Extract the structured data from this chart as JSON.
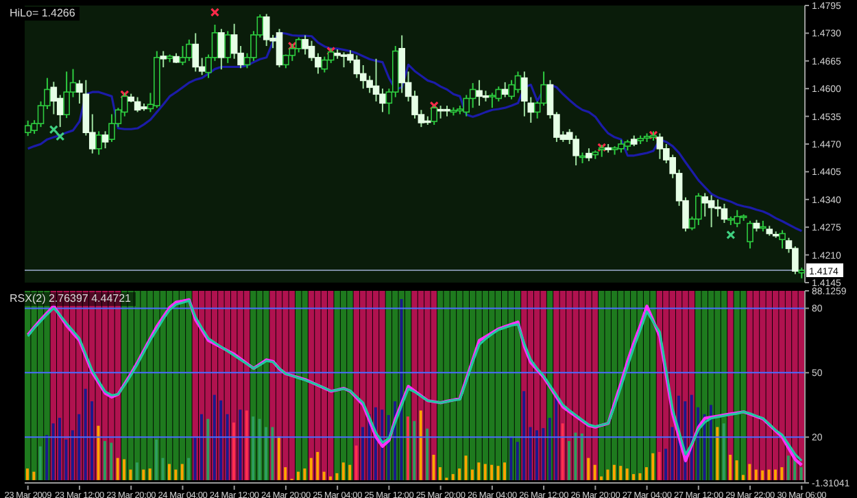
{
  "chart_data": [
    {
      "type": "candlestick",
      "title": "HiLo= 1.4266",
      "ohlc": [
        [
          1.4497,
          1.4525,
          1.4489,
          1.4513
        ],
        [
          1.4502,
          1.4526,
          1.4494,
          1.4518
        ],
        [
          1.4518,
          1.457,
          1.451,
          1.456
        ],
        [
          1.456,
          1.4625,
          1.4552,
          1.4598
        ],
        [
          1.4603,
          1.4616,
          1.454,
          1.4571
        ],
        [
          1.4577,
          1.4585,
          1.451,
          1.4539
        ],
        [
          1.4539,
          1.464,
          1.4531,
          1.4592
        ],
        [
          1.4592,
          1.4646,
          1.458,
          1.4614
        ],
        [
          1.4611,
          1.462,
          1.4565,
          1.4592
        ],
        [
          1.4587,
          1.462,
          1.449,
          1.4497
        ],
        [
          1.4497,
          1.454,
          1.4448,
          1.4459
        ],
        [
          1.4459,
          1.45,
          1.4445,
          1.4491
        ],
        [
          1.4491,
          1.45,
          1.446,
          1.4475
        ],
        [
          1.4481,
          1.454,
          1.4475,
          1.4518
        ],
        [
          1.4518,
          1.4555,
          1.451,
          1.455
        ],
        [
          1.4545,
          1.459,
          1.4535,
          1.4582
        ],
        [
          1.458,
          1.4588,
          1.4568,
          1.4571
        ],
        [
          1.4569,
          1.458,
          1.4545,
          1.455
        ],
        [
          1.4557,
          1.4565,
          1.4548,
          1.4553
        ],
        [
          1.4553,
          1.459,
          1.4545,
          1.4563
        ],
        [
          1.456,
          1.4688,
          1.4555,
          1.4673
        ],
        [
          1.4676,
          1.4688,
          1.465,
          1.467
        ],
        [
          1.4671,
          1.468,
          1.4662,
          1.4676
        ],
        [
          1.4675,
          1.4683,
          1.466,
          1.4662
        ],
        [
          1.4662,
          1.47,
          1.4655,
          1.4673
        ],
        [
          1.4673,
          1.4715,
          1.4665,
          1.4704
        ],
        [
          1.4704,
          1.473,
          1.464,
          1.4651
        ],
        [
          1.4651,
          1.4672,
          1.4632,
          1.4641
        ],
        [
          1.4638,
          1.468,
          1.4625,
          1.4673
        ],
        [
          1.4673,
          1.475,
          1.4665,
          1.4731
        ],
        [
          1.4731,
          1.474,
          1.4645,
          1.4673
        ],
        [
          1.4673,
          1.4735,
          1.466,
          1.4726
        ],
        [
          1.4726,
          1.4752,
          1.467,
          1.4683
        ],
        [
          1.4683,
          1.47,
          1.4648,
          1.4656
        ],
        [
          1.4656,
          1.4683,
          1.4648,
          1.4673
        ],
        [
          1.4673,
          1.4735,
          1.4665,
          1.4726
        ],
        [
          1.4726,
          1.4774,
          1.472,
          1.4768
        ],
        [
          1.4768,
          1.4775,
          1.47,
          1.4715
        ],
        [
          1.4718,
          1.4726,
          1.4695,
          1.4712
        ],
        [
          1.4731,
          1.474,
          1.465,
          1.4656
        ],
        [
          1.4656,
          1.468,
          1.4648,
          1.4678
        ],
        [
          1.4678,
          1.4705,
          1.4665,
          1.4694
        ],
        [
          1.4694,
          1.472,
          1.4685,
          1.4715
        ],
        [
          1.4715,
          1.4725,
          1.468,
          1.4694
        ],
        [
          1.4699,
          1.4712,
          1.4665,
          1.4673
        ],
        [
          1.4673,
          1.4683,
          1.4635,
          1.4651
        ],
        [
          1.4646,
          1.4675,
          1.4638,
          1.4667
        ],
        [
          1.4667,
          1.4695,
          1.466,
          1.4686
        ],
        [
          1.4683,
          1.4692,
          1.467,
          1.4678
        ],
        [
          1.4679,
          1.4685,
          1.465,
          1.4677
        ],
        [
          1.468,
          1.469,
          1.466,
          1.4667
        ],
        [
          1.4667,
          1.4678,
          1.4625,
          1.4635
        ],
        [
          1.4635,
          1.4655,
          1.46,
          1.4619
        ],
        [
          1.4619,
          1.463,
          1.459,
          1.4603
        ],
        [
          1.4606,
          1.467,
          1.457,
          1.4587
        ],
        [
          1.4587,
          1.46,
          1.4545,
          1.4566
        ],
        [
          1.4566,
          1.46,
          1.454,
          1.4592
        ],
        [
          1.4592,
          1.47,
          1.458,
          1.4688
        ],
        [
          1.4694,
          1.4725,
          1.459,
          1.4614
        ],
        [
          1.4614,
          1.464,
          1.457,
          1.4582
        ],
        [
          1.4582,
          1.4595,
          1.453,
          1.4539
        ],
        [
          1.4539,
          1.455,
          1.451,
          1.452
        ],
        [
          1.4524,
          1.4535,
          1.4515,
          1.4522
        ],
        [
          1.4523,
          1.456,
          1.4515,
          1.4555
        ],
        [
          1.4551,
          1.456,
          1.453,
          1.4549
        ],
        [
          1.4551,
          1.456,
          1.4535,
          1.4549
        ],
        [
          1.4545,
          1.4556,
          1.4537,
          1.4549
        ],
        [
          1.4548,
          1.456,
          1.454,
          1.4552
        ],
        [
          1.4545,
          1.4585,
          1.4535,
          1.4577
        ],
        [
          1.4577,
          1.4613,
          1.4555,
          1.4598
        ],
        [
          1.4595,
          1.462,
          1.456,
          1.4582
        ],
        [
          1.4583,
          1.4595,
          1.457,
          1.4581
        ],
        [
          1.4581,
          1.459,
          1.4555,
          1.4584
        ],
        [
          1.4577,
          1.4605,
          1.457,
          1.4598
        ],
        [
          1.4598,
          1.4615,
          1.458,
          1.4587
        ],
        [
          1.4582,
          1.462,
          1.4575,
          1.4609
        ],
        [
          1.4598,
          1.464,
          1.459,
          1.463
        ],
        [
          1.4625,
          1.464,
          1.4535,
          1.4571
        ],
        [
          1.4566,
          1.458,
          1.452,
          1.4545
        ],
        [
          1.4545,
          1.457,
          1.453,
          1.4566
        ],
        [
          1.4566,
          1.464,
          1.456,
          1.4609
        ],
        [
          1.4609,
          1.462,
          1.453,
          1.4539
        ],
        [
          1.4539,
          1.4545,
          1.4475,
          1.4486
        ],
        [
          1.4491,
          1.45,
          1.4475,
          1.4481
        ],
        [
          1.4497,
          1.4505,
          1.447,
          1.4481
        ],
        [
          1.4481,
          1.449,
          1.442,
          1.4443
        ],
        [
          1.444,
          1.445,
          1.4425,
          1.4442
        ],
        [
          1.4448,
          1.446,
          1.443,
          1.4438
        ],
        [
          1.4445,
          1.4455,
          1.4435,
          1.4451
        ],
        [
          1.4457,
          1.4468,
          1.444,
          1.4461
        ],
        [
          1.4461,
          1.447,
          1.445,
          1.4457
        ],
        [
          1.4457,
          1.4465,
          1.4445,
          1.4461
        ],
        [
          1.4459,
          1.448,
          1.445,
          1.447
        ],
        [
          1.4465,
          1.448,
          1.4455,
          1.4475
        ],
        [
          1.4481,
          1.449,
          1.4465,
          1.447
        ],
        [
          1.4478,
          1.449,
          1.447,
          1.4483
        ],
        [
          1.4484,
          1.4495,
          1.4475,
          1.4488
        ],
        [
          1.4486,
          1.45,
          1.4478,
          1.449
        ],
        [
          1.4486,
          1.4495,
          1.4435,
          1.4459
        ],
        [
          1.4459,
          1.447,
          1.4425,
          1.4433
        ],
        [
          1.4438,
          1.4445,
          1.439,
          1.4401
        ],
        [
          1.4401,
          1.441,
          1.4325,
          1.4337
        ],
        [
          1.4337,
          1.4345,
          1.4265,
          1.4273
        ],
        [
          1.4273,
          1.43,
          1.4268,
          1.4294
        ],
        [
          1.4294,
          1.4355,
          1.428,
          1.4348
        ],
        [
          1.4346,
          1.4355,
          1.43,
          1.4332
        ],
        [
          1.4337,
          1.435,
          1.4275,
          1.4321
        ],
        [
          1.4322,
          1.434,
          1.43,
          1.432
        ],
        [
          1.4318,
          1.433,
          1.4285,
          1.4294
        ],
        [
          1.4293,
          1.43,
          1.428,
          1.4295
        ],
        [
          1.4284,
          1.4315,
          1.4275,
          1.43
        ],
        [
          1.4299,
          1.4305,
          1.429,
          1.4301
        ],
        [
          1.4241,
          1.429,
          1.4225,
          1.4284
        ],
        [
          1.4284,
          1.4292,
          1.4265,
          1.4273
        ],
        [
          1.4273,
          1.429,
          1.4265,
          1.4276
        ],
        [
          1.427,
          1.4278,
          1.4255,
          1.426
        ],
        [
          1.4258,
          1.4265,
          1.425,
          1.4256
        ],
        [
          1.4246,
          1.4268,
          1.4225,
          1.426
        ],
        [
          1.4243,
          1.425,
          1.4215,
          1.4225
        ],
        [
          1.4225,
          1.423,
          1.4165,
          1.4172
        ],
        [
          1.4168,
          1.418,
          1.4155,
          1.4174
        ]
      ],
      "series": [
        {
          "type": "line",
          "color": "#1c1ca8",
          "values": [
            1.4459,
            1.4465,
            1.447,
            1.4481,
            1.4486,
            1.4491,
            1.4497,
            1.4502,
            1.4523,
            1.4587,
            1.4592,
            1.4592,
            1.4587,
            1.4582,
            1.4507,
            1.4505,
            1.4505,
            1.4507,
            1.4516,
            1.4527,
            1.4545,
            1.4563,
            1.4582,
            1.4592,
            1.4603,
            1.4614,
            1.4621,
            1.4625,
            1.4635,
            1.4646,
            1.4651,
            1.4651,
            1.4651,
            1.4651,
            1.4654,
            1.4662,
            1.4669,
            1.4673,
            1.471,
            1.4731,
            1.4729,
            1.4725,
            1.4724,
            1.4724,
            1.4723,
            1.4708,
            1.4699,
            1.4694,
            1.4694,
            1.4691,
            1.4688,
            1.4683,
            1.4676,
            1.4669,
            1.4665,
            1.4662,
            1.4625,
            1.4598,
            1.4603,
            1.4656,
            1.4641,
            1.463,
            1.4619,
            1.4614,
            1.4605,
            1.4598,
            1.4587,
            1.4582,
            1.4539,
            1.4534,
            1.4539,
            1.4545,
            1.455,
            1.4552,
            1.4555,
            1.456,
            1.4566,
            1.4603,
            1.4609,
            1.4571,
            1.4598,
            1.4609,
            1.4603,
            1.4587,
            1.4573,
            1.456,
            1.455,
            1.4545,
            1.4534,
            1.4513,
            1.4495,
            1.4486,
            1.4481,
            1.4443,
            1.4443,
            1.4446,
            1.4449,
            1.4454,
            1.4481,
            1.4475,
            1.4465,
            1.4449,
            1.4427,
            1.4406,
            1.4385,
            1.4369,
            1.4353,
            1.4345,
            1.434,
            1.4335,
            1.4328,
            1.4324,
            1.4321,
            1.4316,
            1.4312,
            1.4305,
            1.4296,
            1.4289,
            1.4281,
            1.4273,
            1.4266
          ]
        },
        {
          "type": "scatter",
          "color": "#ff2a4a",
          "marker": "cross",
          "values": [
            null,
            null,
            null,
            null,
            null,
            null,
            null,
            null,
            null,
            null,
            null,
            null,
            null,
            null,
            null,
            1.4586,
            null,
            null,
            null,
            null,
            null,
            null,
            null,
            null,
            null,
            null,
            null,
            null,
            null,
            1.4779,
            null,
            null,
            null,
            null,
            null,
            null,
            null,
            null,
            null,
            null,
            null,
            1.47,
            null,
            null,
            null,
            null,
            null,
            1.4688,
            null,
            null,
            null,
            null,
            null,
            null,
            null,
            null,
            null,
            null,
            null,
            null,
            null,
            null,
            null,
            1.456,
            null,
            null,
            null,
            null,
            null,
            null,
            null,
            null,
            null,
            null,
            null,
            null,
            null,
            null,
            null,
            null,
            null,
            null,
            null,
            null,
            null,
            null,
            null,
            null,
            null,
            1.4462,
            null,
            null,
            null,
            null,
            null,
            null,
            null,
            1.4491,
            null,
            null,
            null,
            null,
            null,
            null,
            null,
            null,
            null,
            null,
            null,
            null,
            null,
            null,
            null,
            null,
            null,
            null,
            null,
            null,
            null,
            null,
            null
          ]
        },
        {
          "type": "scatter",
          "color": "#3fd080",
          "marker": "cross",
          "values": [
            null,
            null,
            null,
            null,
            1.4504,
            1.4488,
            null,
            null,
            null,
            null,
            null,
            null,
            null,
            null,
            null,
            null,
            null,
            null,
            null,
            null,
            null,
            null,
            null,
            null,
            null,
            null,
            null,
            null,
            null,
            null,
            null,
            null,
            null,
            null,
            null,
            null,
            null,
            null,
            null,
            null,
            null,
            null,
            null,
            null,
            null,
            null,
            null,
            null,
            null,
            null,
            null,
            null,
            null,
            null,
            null,
            null,
            null,
            null,
            null,
            null,
            null,
            null,
            null,
            null,
            null,
            null,
            null,
            null,
            null,
            null,
            null,
            null,
            null,
            null,
            null,
            null,
            null,
            null,
            null,
            null,
            null,
            null,
            null,
            null,
            null,
            null,
            null,
            null,
            null,
            null,
            null,
            null,
            null,
            null,
            null,
            null,
            null,
            null,
            null,
            null,
            null,
            null,
            null,
            null,
            null,
            null,
            null,
            null,
            null,
            1.4257,
            null,
            null,
            null,
            null,
            null,
            null,
            null,
            null,
            null,
            null,
            null
          ]
        }
      ],
      "ylim": [
        1.4145,
        1.4795
      ],
      "yticks": [
        1.4795,
        {
          "value": 1.473,
          "label": "1.4730"
        },
        1.4665,
        {
          "value": 1.46,
          "label": "1.4600"
        },
        1.4535,
        {
          "value": 1.447,
          "label": "1.4470"
        },
        1.4405,
        {
          "value": 1.434,
          "label": "1.4340"
        },
        1.4275,
        {
          "value": 1.421,
          "label": "1.4210"
        },
        1.4145
      ],
      "ref_lines": [
        {
          "axis": "y",
          "value": 1.4174,
          "label": "1.4174",
          "color": "#7a8aa0"
        }
      ],
      "tick_labels": "y"
    },
    {
      "type": "line",
      "title": "RSX(2) 2.76397 4.44721",
      "categories": [
        "23 Mar 2009",
        null,
        null,
        null,
        null,
        null,
        null,
        null,
        "23 Mar 12:00",
        null,
        null,
        null,
        null,
        null,
        null,
        null,
        "23 Mar 20:00",
        null,
        null,
        null,
        null,
        null,
        null,
        null,
        "24 Mar 04:00",
        null,
        null,
        null,
        null,
        null,
        null,
        null,
        "24 Mar 12:00",
        null,
        null,
        null,
        null,
        null,
        null,
        null,
        "24 Mar 20:00",
        null,
        null,
        null,
        null,
        null,
        null,
        null,
        "25 Mar 04:00",
        null,
        null,
        null,
        null,
        null,
        null,
        null,
        "25 Mar 12:00",
        null,
        null,
        null,
        null,
        null,
        null,
        null,
        "25 Mar 20:00",
        null,
        null,
        null,
        null,
        null,
        null,
        null,
        "26 Mar 04:00",
        null,
        null,
        null,
        null,
        null,
        null,
        null,
        "26 Mar 12:00",
        null,
        null,
        null,
        null,
        null,
        null,
        null,
        "26 Mar 20:00",
        null,
        null,
        null,
        null,
        null,
        null,
        null,
        "27 Mar 04:00",
        null,
        null,
        null,
        null,
        null,
        null,
        null,
        "27 Mar 12:00",
        null,
        null,
        null,
        null,
        null,
        null,
        null,
        "29 Mar 22:00",
        null,
        null,
        null,
        null,
        null,
        null,
        null,
        "30 Mar 06:00"
      ],
      "series": [
        {
          "type": "bar",
          "values": [
            88.1,
            88.1,
            88.1,
            88.1,
            88.1,
            88.1,
            88.1,
            88.1,
            88.1,
            88.1,
            88.1,
            88.1,
            88.1,
            88.1,
            88.1,
            88.1,
            88.1,
            88.1,
            88.1,
            88.1,
            88.1,
            88.1,
            88.1,
            88.1,
            88.1,
            88.1,
            88.1,
            88.1,
            88.1,
            88.1,
            88.1,
            88.1,
            88.1,
            88.1,
            88.1,
            88.1,
            88.1,
            88.1,
            88.1,
            88.1,
            88.1,
            88.1,
            88.1,
            88.1,
            88.1,
            88.1,
            88.1,
            88.1,
            88.1,
            88.1,
            88.1,
            88.1,
            88.1,
            88.1,
            88.1,
            88.1,
            88.1,
            88.1,
            88.1,
            88.1,
            88.1,
            88.1,
            88.1,
            88.1,
            88.1,
            88.1,
            88.1,
            88.1,
            88.1,
            88.1,
            88.1,
            88.1,
            88.1,
            88.1,
            88.1,
            88.1,
            88.1,
            88.1,
            88.1,
            88.1,
            88.1,
            88.1,
            88.1,
            88.1,
            88.1,
            88.1,
            88.1,
            88.1,
            88.1,
            88.1,
            88.1,
            88.1,
            88.1,
            88.1,
            88.1,
            88.1,
            88.1,
            88.1,
            88.1,
            88.1,
            88.1,
            88.1,
            88.1,
            88.1,
            88.1,
            88.1,
            88.1,
            88.1,
            88.1,
            88.1,
            88.1,
            88.1,
            88.1,
            88.1,
            88.1,
            88.1,
            88.1,
            88.1,
            88.1,
            88.1,
            88.1
          ],
          "colors": [
            "#1e7a1e",
            "#1e7a1e",
            "#1e7a1e",
            "#1e7a1e",
            "#b0124f",
            "#b0124f",
            "#b0124f",
            "#b0124f",
            "#b0124f",
            "#b0124f",
            "#b0124f",
            "#b0124f",
            "#b0124f",
            "#b0124f",
            "#b0124f",
            "#1e7a1e",
            "#1e7a1e",
            "#1e7a1e",
            "#1e7a1e",
            "#1e7a1e",
            "#1e7a1e",
            "#1e7a1e",
            "#1e7a1e",
            "#1e7a1e",
            "#1e7a1e",
            "#1e7a1e",
            "#b0124f",
            "#b0124f",
            "#b0124f",
            "#b0124f",
            "#b0124f",
            "#b0124f",
            "#b0124f",
            "#b0124f",
            "#b0124f",
            "#1e7a1e",
            "#1e7a1e",
            "#1e7a1e",
            "#b0124f",
            "#b0124f",
            "#b0124f",
            "#b0124f",
            "#1e7a1e",
            "#1e7a1e",
            "#b0124f",
            "#b0124f",
            "#b0124f",
            "#b0124f",
            "#1e7a1e",
            "#1e7a1e",
            "#1e7a1e",
            "#b0124f",
            "#b0124f",
            "#b0124f",
            "#b0124f",
            "#b0124f",
            "#1e7a1e",
            "#1e7a1e",
            "#1e7a1e",
            "#1e7a1e",
            "#b0124f",
            "#b0124f",
            "#b0124f",
            "#b0124f",
            "#1e7a1e",
            "#1e7a1e",
            "#1e7a1e",
            "#1e7a1e",
            "#1e7a1e",
            "#1e7a1e",
            "#1e7a1e",
            "#1e7a1e",
            "#1e7a1e",
            "#1e7a1e",
            "#1e7a1e",
            "#1e7a1e",
            "#1e7a1e",
            "#b0124f",
            "#b0124f",
            "#b0124f",
            "#b0124f",
            "#1e7a1e",
            "#b0124f",
            "#b0124f",
            "#b0124f",
            "#b0124f",
            "#b0124f",
            "#b0124f",
            "#b0124f",
            "#1e7a1e",
            "#1e7a1e",
            "#1e7a1e",
            "#1e7a1e",
            "#1e7a1e",
            "#1e7a1e",
            "#1e7a1e",
            "#1e7a1e",
            "#1e7a1e",
            "#b0124f",
            "#b0124f",
            "#b0124f",
            "#b0124f",
            "#b0124f",
            "#b0124f",
            "#1e7a1e",
            "#1e7a1e",
            "#1e7a1e",
            "#1e7a1e",
            "#1e7a1e",
            "#b0124f",
            "#1e7a1e",
            "#1e7a1e",
            "#b0124f",
            "#b0124f",
            "#b0124f",
            "#b0124f",
            "#b0124f",
            "#b0124f",
            "#b0124f",
            "#b0124f",
            "#b0124f"
          ]
        },
        {
          "type": "bar",
          "values": [
            5.4,
            3.9,
            15.7,
            21,
            26.4,
            29,
            18.9,
            23.2,
            30.7,
            42.5,
            36.7,
            25.3,
            18.2,
            17.4,
            10.3,
            9.7,
            4.9,
            8.2,
            4.9,
            5.4,
            18.9,
            10.3,
            7.5,
            4.9,
            7.5,
            10.3,
            20,
            30.7,
            28.5,
            39.7,
            37.1,
            30.7,
            26.8,
            32.8,
            32.4,
            29.6,
            28.5,
            24.7,
            24.7,
            20.4,
            6,
            0.6,
            3.9,
            5.4,
            10.3,
            13.1,
            3.9,
            1.7,
            3.2,
            8.2,
            7.1,
            16.1,
            24.7,
            30.7,
            33.9,
            32.8,
            30.3,
            36.7,
            84.3,
            29.6,
            27.5,
            32.4,
            24,
            11.8,
            6,
            1.1,
            2.8,
            5.4,
            11.4,
            4.9,
            8.2,
            7.5,
            7.1,
            6.6,
            8.2,
            20,
            17.8,
            41.4,
            24.7,
            23.2,
            24.2,
            29,
            39.3,
            26.4,
            18.2,
            22.1,
            21.7,
            10.3,
            7.1,
            1.7,
            4.9,
            7.1,
            6.6,
            5.4,
            2.8,
            3.2,
            6,
            12.5,
            13.1,
            14.6,
            24.7,
            39.3,
            36.7,
            39.7,
            33.9,
            30.7,
            35,
            24.7,
            26.4,
            11.8,
            9.2,
            2.4,
            7.5,
            4.9,
            4.5,
            4.9,
            4.9,
            6,
            11.4,
            10.8,
            6
          ],
          "colors": [
            "#ffa500",
            "#ffa500",
            "#2e9e5e",
            "#1a1a8c",
            "#1a1a8c",
            "#1a1a8c",
            "#1a1a8c",
            "#1a1a8c",
            "#1a1a8c",
            "#1a1a8c",
            "#1a1a8c",
            "#ffa500",
            "#2e9e5e",
            "#2e9e5e",
            "#ffa500",
            "#ffa500",
            "#ffa500",
            "#2e9e5e",
            "#ffa500",
            "#ffa500",
            "#2e9e5e",
            "#2e9e5e",
            "#ffa500",
            "#ffa500",
            "#ffa500",
            "#2e9e5e",
            "#1a1a8c",
            "#1a1a8c",
            "#2e9e5e",
            "#1a1a8c",
            "#1a1a8c",
            "#1a1a8c",
            "#ff3050",
            "#1a1a8c",
            "#ff3050",
            "#2e9e5e",
            "#2e9e5e",
            "#2e9e5e",
            "#2e9e5e",
            "#ffa500",
            "#ffa500",
            "#ffa500",
            "#ffa500",
            "#ffa500",
            "#ffa500",
            "#ffa500",
            "#ffa500",
            "#ffa500",
            "#ffa500",
            "#ffa500",
            "#ffa500",
            "#ff3050",
            "#1a1a8c",
            "#1a1a8c",
            "#1a1a8c",
            "#1a1a8c",
            "#1a1a8c",
            "#1a1a8c",
            "#1a1a8c",
            "#ff3050",
            "#2e9e5e",
            "#ffa500",
            "#2e9e5e",
            "#ffa500",
            "#ffa500",
            "#ffa500",
            "#ffa500",
            "#ffa500",
            "#ffa500",
            "#ffa500",
            "#ffa500",
            "#ffa500",
            "#ffa500",
            "#ffa500",
            "#ffa500",
            "#1a1a8c",
            "#1a1a8c",
            "#1a1a8c",
            "#1a1a8c",
            "#1a1a8c",
            "#1a1a8c",
            "#1a1a8c",
            "#1a1a8c",
            "#ff3050",
            "#2e9e5e",
            "#2e9e5e",
            "#2e9e5e",
            "#ffa500",
            "#ffa500",
            "#ffa500",
            "#ffa500",
            "#ffa500",
            "#ffa500",
            "#ffa500",
            "#ffa500",
            "#ffa500",
            "#ffa500",
            "#ffa500",
            "#ff3050",
            "#1a1a8c",
            "#1a1a8c",
            "#1a1a8c",
            "#1a1a8c",
            "#1a1a8c",
            "#1a1a8c",
            "#1a1a8c",
            "#1a1a8c",
            "#ffa500",
            "#2e9e5e",
            "#ffa500",
            "#ffa500",
            "#ffa500",
            "#ffa500",
            "#ffa500",
            "#ffa500",
            "#ffa500",
            "#ffa500",
            "#ffa500",
            "#2e9e5e",
            "#2e9e5e",
            "#2e9e5e"
          ]
        },
        {
          "type": "line",
          "color": "#ff30ff",
          "values": [
            67.6,
            71.2,
            74.7,
            77.9,
            81,
            76.5,
            72,
            68.5,
            65,
            57.5,
            50,
            45.2,
            40.4,
            38.7,
            40,
            44.8,
            49.6,
            54.8,
            60.4,
            66,
            71.5,
            76,
            80.4,
            82.9,
            83.4,
            84,
            74.7,
            69.9,
            65,
            63.4,
            61.8,
            60.2,
            58.6,
            56.4,
            54.2,
            52,
            54,
            56,
            55.3,
            51.8,
            49.5,
            48.6,
            47.7,
            46.8,
            45.5,
            44.1,
            42.8,
            41.4,
            42,
            42.7,
            41.4,
            38.2,
            35,
            27.5,
            20,
            15.7,
            18.5,
            28.5,
            36,
            43.6,
            41.4,
            39.2,
            37,
            36.5,
            36,
            36.7,
            37.3,
            38,
            47,
            56,
            65,
            66.8,
            68.6,
            70.4,
            71.5,
            72.5,
            73.6,
            62.1,
            54.7,
            51.3,
            47.9,
            43.3,
            38.6,
            34,
            31.8,
            29.7,
            27.5,
            25.4,
            24.7,
            25.6,
            26.4,
            35.9,
            45.3,
            55.3,
            64.1,
            72.1,
            81,
            74,
            67,
            48.9,
            30.7,
            19.9,
            9,
            16.8,
            24.6,
            28.8,
            29.3,
            29.8,
            30.3,
            30.8,
            31.3,
            31.8,
            30.7,
            29.6,
            28.5,
            25.7,
            22.8,
            20,
            14.8,
            9.6,
            7
          ]
        },
        {
          "type": "line",
          "color": "#20c8a0",
          "values": [
            67,
            70.8,
            74,
            77.2,
            80,
            76.8,
            73,
            69.5,
            66,
            58.5,
            51,
            46,
            41.2,
            39.5,
            40,
            44.2,
            48.9,
            54,
            59.6,
            65.2,
            70,
            75,
            79.3,
            81.8,
            82.6,
            83.5,
            76,
            70.8,
            66,
            64,
            62,
            60,
            58,
            56,
            54,
            52,
            53.6,
            55.5,
            55,
            52,
            49.5,
            48.5,
            47.5,
            46.5,
            45.4,
            44.2,
            42.9,
            41.5,
            42,
            42.5,
            41.6,
            38.8,
            36,
            29,
            22,
            17.5,
            19.5,
            27,
            35,
            42.5,
            41,
            39,
            37,
            36.5,
            36,
            36.6,
            37.2,
            37.5,
            46,
            55,
            63,
            65.8,
            68,
            70,
            71,
            72,
            72.5,
            63.5,
            56,
            52,
            48.5,
            44,
            39.5,
            35,
            32.5,
            30.2,
            28,
            25.8,
            25,
            25.7,
            26.5,
            34.5,
            43.5,
            53,
            62,
            70,
            78.5,
            73.5,
            69,
            51,
            33,
            22.5,
            12,
            17,
            23.5,
            27,
            28.8,
            29.4,
            30,
            30.5,
            31,
            31.8,
            31,
            29.8,
            28.8,
            26,
            23.2,
            21,
            16.5,
            12,
            9
          ]
        }
      ],
      "ylim": [
        -1.31041,
        88.1259
      ],
      "yticks": [
        88.1259,
        80,
        50,
        20,
        -1.31041
      ],
      "ref_lines": [
        {
          "axis": "y",
          "value": 80,
          "color": "#4a6cff"
        },
        {
          "axis": "y",
          "value": 50,
          "color": "#4a6cff"
        },
        {
          "axis": "y",
          "value": 20,
          "color": "#4a6cff"
        }
      ]
    }
  ]
}
